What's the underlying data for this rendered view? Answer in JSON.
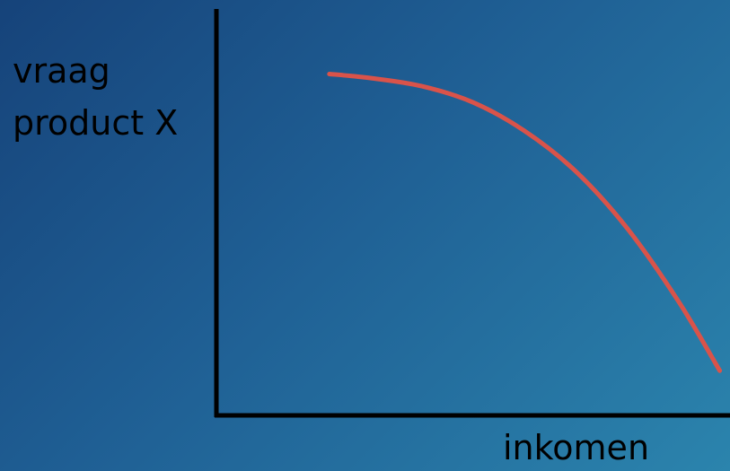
{
  "chart_data": {
    "type": "line",
    "title": "",
    "xlabel": "inkomen",
    "ylabel_lines": [
      "vraag",
      "product X"
    ],
    "x": [
      0.22,
      0.3,
      0.4,
      0.5,
      0.6,
      0.7,
      0.8,
      0.9,
      0.98
    ],
    "series": [
      {
        "values": [
          0.84,
          0.83,
          0.81,
          0.77,
          0.7,
          0.6,
          0.46,
          0.28,
          0.11
        ],
        "color": "#d9534a"
      }
    ],
    "xlim": [
      0,
      1
    ],
    "ylim": [
      0,
      1
    ],
    "grid": false,
    "axis_color": "#000000"
  }
}
